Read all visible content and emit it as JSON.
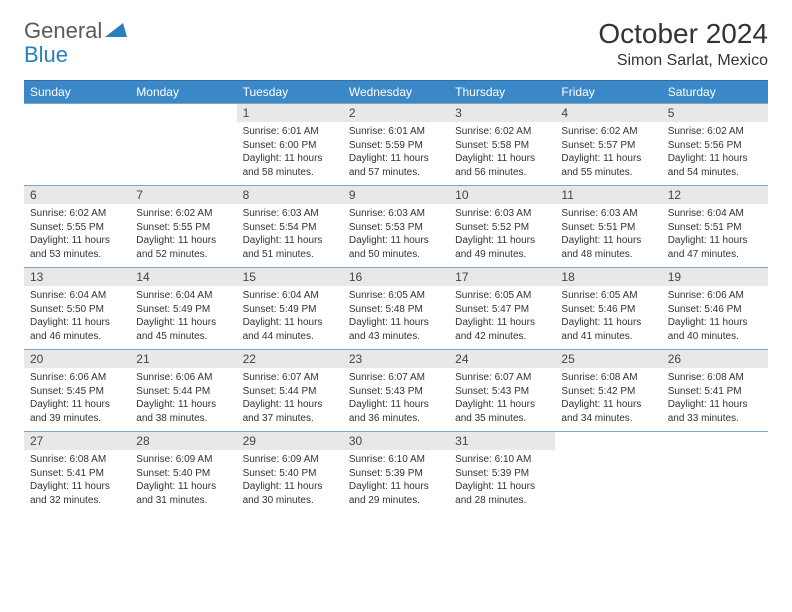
{
  "logo": {
    "part1": "General",
    "part2": "Blue",
    "accent_color": "#2b7fbf",
    "text_color": "#5a5a5a"
  },
  "title": {
    "month": "October 2024",
    "location": "Simon Sarlat, Mexico"
  },
  "colors": {
    "header_bg": "#3a88c7",
    "header_text": "#ffffff",
    "num_bg": "#e8e8e8",
    "cell_border": "#7fa4c4"
  },
  "day_headers": [
    "Sunday",
    "Monday",
    "Tuesday",
    "Wednesday",
    "Thursday",
    "Friday",
    "Saturday"
  ],
  "weeks": [
    [
      {
        "n": "",
        "sr": "",
        "ss": "",
        "dl": ""
      },
      {
        "n": "",
        "sr": "",
        "ss": "",
        "dl": ""
      },
      {
        "n": "1",
        "sr": "Sunrise: 6:01 AM",
        "ss": "Sunset: 6:00 PM",
        "dl": "Daylight: 11 hours and 58 minutes."
      },
      {
        "n": "2",
        "sr": "Sunrise: 6:01 AM",
        "ss": "Sunset: 5:59 PM",
        "dl": "Daylight: 11 hours and 57 minutes."
      },
      {
        "n": "3",
        "sr": "Sunrise: 6:02 AM",
        "ss": "Sunset: 5:58 PM",
        "dl": "Daylight: 11 hours and 56 minutes."
      },
      {
        "n": "4",
        "sr": "Sunrise: 6:02 AM",
        "ss": "Sunset: 5:57 PM",
        "dl": "Daylight: 11 hours and 55 minutes."
      },
      {
        "n": "5",
        "sr": "Sunrise: 6:02 AM",
        "ss": "Sunset: 5:56 PM",
        "dl": "Daylight: 11 hours and 54 minutes."
      }
    ],
    [
      {
        "n": "6",
        "sr": "Sunrise: 6:02 AM",
        "ss": "Sunset: 5:55 PM",
        "dl": "Daylight: 11 hours and 53 minutes."
      },
      {
        "n": "7",
        "sr": "Sunrise: 6:02 AM",
        "ss": "Sunset: 5:55 PM",
        "dl": "Daylight: 11 hours and 52 minutes."
      },
      {
        "n": "8",
        "sr": "Sunrise: 6:03 AM",
        "ss": "Sunset: 5:54 PM",
        "dl": "Daylight: 11 hours and 51 minutes."
      },
      {
        "n": "9",
        "sr": "Sunrise: 6:03 AM",
        "ss": "Sunset: 5:53 PM",
        "dl": "Daylight: 11 hours and 50 minutes."
      },
      {
        "n": "10",
        "sr": "Sunrise: 6:03 AM",
        "ss": "Sunset: 5:52 PM",
        "dl": "Daylight: 11 hours and 49 minutes."
      },
      {
        "n": "11",
        "sr": "Sunrise: 6:03 AM",
        "ss": "Sunset: 5:51 PM",
        "dl": "Daylight: 11 hours and 48 minutes."
      },
      {
        "n": "12",
        "sr": "Sunrise: 6:04 AM",
        "ss": "Sunset: 5:51 PM",
        "dl": "Daylight: 11 hours and 47 minutes."
      }
    ],
    [
      {
        "n": "13",
        "sr": "Sunrise: 6:04 AM",
        "ss": "Sunset: 5:50 PM",
        "dl": "Daylight: 11 hours and 46 minutes."
      },
      {
        "n": "14",
        "sr": "Sunrise: 6:04 AM",
        "ss": "Sunset: 5:49 PM",
        "dl": "Daylight: 11 hours and 45 minutes."
      },
      {
        "n": "15",
        "sr": "Sunrise: 6:04 AM",
        "ss": "Sunset: 5:49 PM",
        "dl": "Daylight: 11 hours and 44 minutes."
      },
      {
        "n": "16",
        "sr": "Sunrise: 6:05 AM",
        "ss": "Sunset: 5:48 PM",
        "dl": "Daylight: 11 hours and 43 minutes."
      },
      {
        "n": "17",
        "sr": "Sunrise: 6:05 AM",
        "ss": "Sunset: 5:47 PM",
        "dl": "Daylight: 11 hours and 42 minutes."
      },
      {
        "n": "18",
        "sr": "Sunrise: 6:05 AM",
        "ss": "Sunset: 5:46 PM",
        "dl": "Daylight: 11 hours and 41 minutes."
      },
      {
        "n": "19",
        "sr": "Sunrise: 6:06 AM",
        "ss": "Sunset: 5:46 PM",
        "dl": "Daylight: 11 hours and 40 minutes."
      }
    ],
    [
      {
        "n": "20",
        "sr": "Sunrise: 6:06 AM",
        "ss": "Sunset: 5:45 PM",
        "dl": "Daylight: 11 hours and 39 minutes."
      },
      {
        "n": "21",
        "sr": "Sunrise: 6:06 AM",
        "ss": "Sunset: 5:44 PM",
        "dl": "Daylight: 11 hours and 38 minutes."
      },
      {
        "n": "22",
        "sr": "Sunrise: 6:07 AM",
        "ss": "Sunset: 5:44 PM",
        "dl": "Daylight: 11 hours and 37 minutes."
      },
      {
        "n": "23",
        "sr": "Sunrise: 6:07 AM",
        "ss": "Sunset: 5:43 PM",
        "dl": "Daylight: 11 hours and 36 minutes."
      },
      {
        "n": "24",
        "sr": "Sunrise: 6:07 AM",
        "ss": "Sunset: 5:43 PM",
        "dl": "Daylight: 11 hours and 35 minutes."
      },
      {
        "n": "25",
        "sr": "Sunrise: 6:08 AM",
        "ss": "Sunset: 5:42 PM",
        "dl": "Daylight: 11 hours and 34 minutes."
      },
      {
        "n": "26",
        "sr": "Sunrise: 6:08 AM",
        "ss": "Sunset: 5:41 PM",
        "dl": "Daylight: 11 hours and 33 minutes."
      }
    ],
    [
      {
        "n": "27",
        "sr": "Sunrise: 6:08 AM",
        "ss": "Sunset: 5:41 PM",
        "dl": "Daylight: 11 hours and 32 minutes."
      },
      {
        "n": "28",
        "sr": "Sunrise: 6:09 AM",
        "ss": "Sunset: 5:40 PM",
        "dl": "Daylight: 11 hours and 31 minutes."
      },
      {
        "n": "29",
        "sr": "Sunrise: 6:09 AM",
        "ss": "Sunset: 5:40 PM",
        "dl": "Daylight: 11 hours and 30 minutes."
      },
      {
        "n": "30",
        "sr": "Sunrise: 6:10 AM",
        "ss": "Sunset: 5:39 PM",
        "dl": "Daylight: 11 hours and 29 minutes."
      },
      {
        "n": "31",
        "sr": "Sunrise: 6:10 AM",
        "ss": "Sunset: 5:39 PM",
        "dl": "Daylight: 11 hours and 28 minutes."
      },
      {
        "n": "",
        "sr": "",
        "ss": "",
        "dl": ""
      },
      {
        "n": "",
        "sr": "",
        "ss": "",
        "dl": ""
      }
    ]
  ]
}
